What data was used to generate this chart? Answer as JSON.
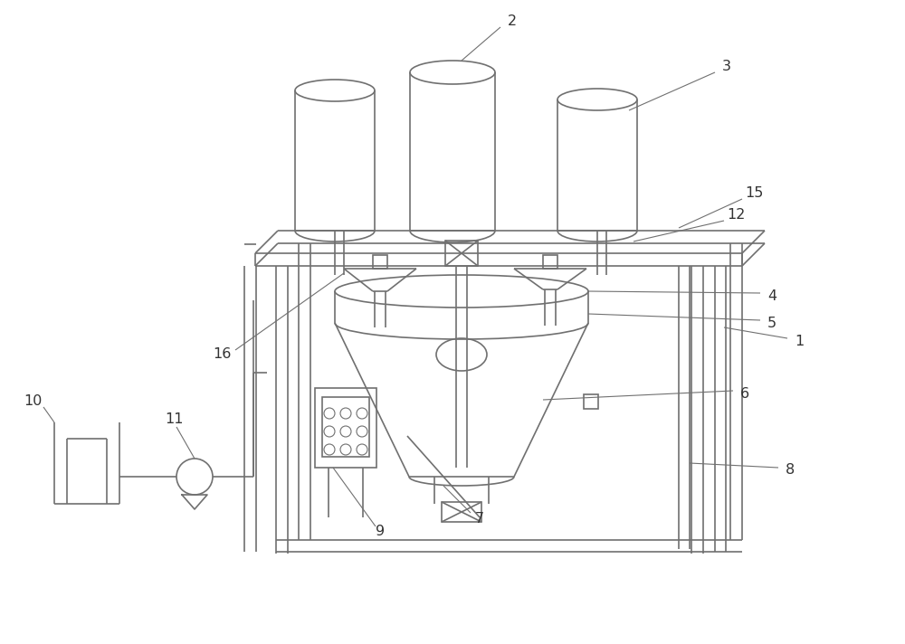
{
  "bg_color": "#ffffff",
  "lc": "#707070",
  "lw": 1.2,
  "tlw": 0.8,
  "fig_width": 10.0,
  "fig_height": 7.12
}
